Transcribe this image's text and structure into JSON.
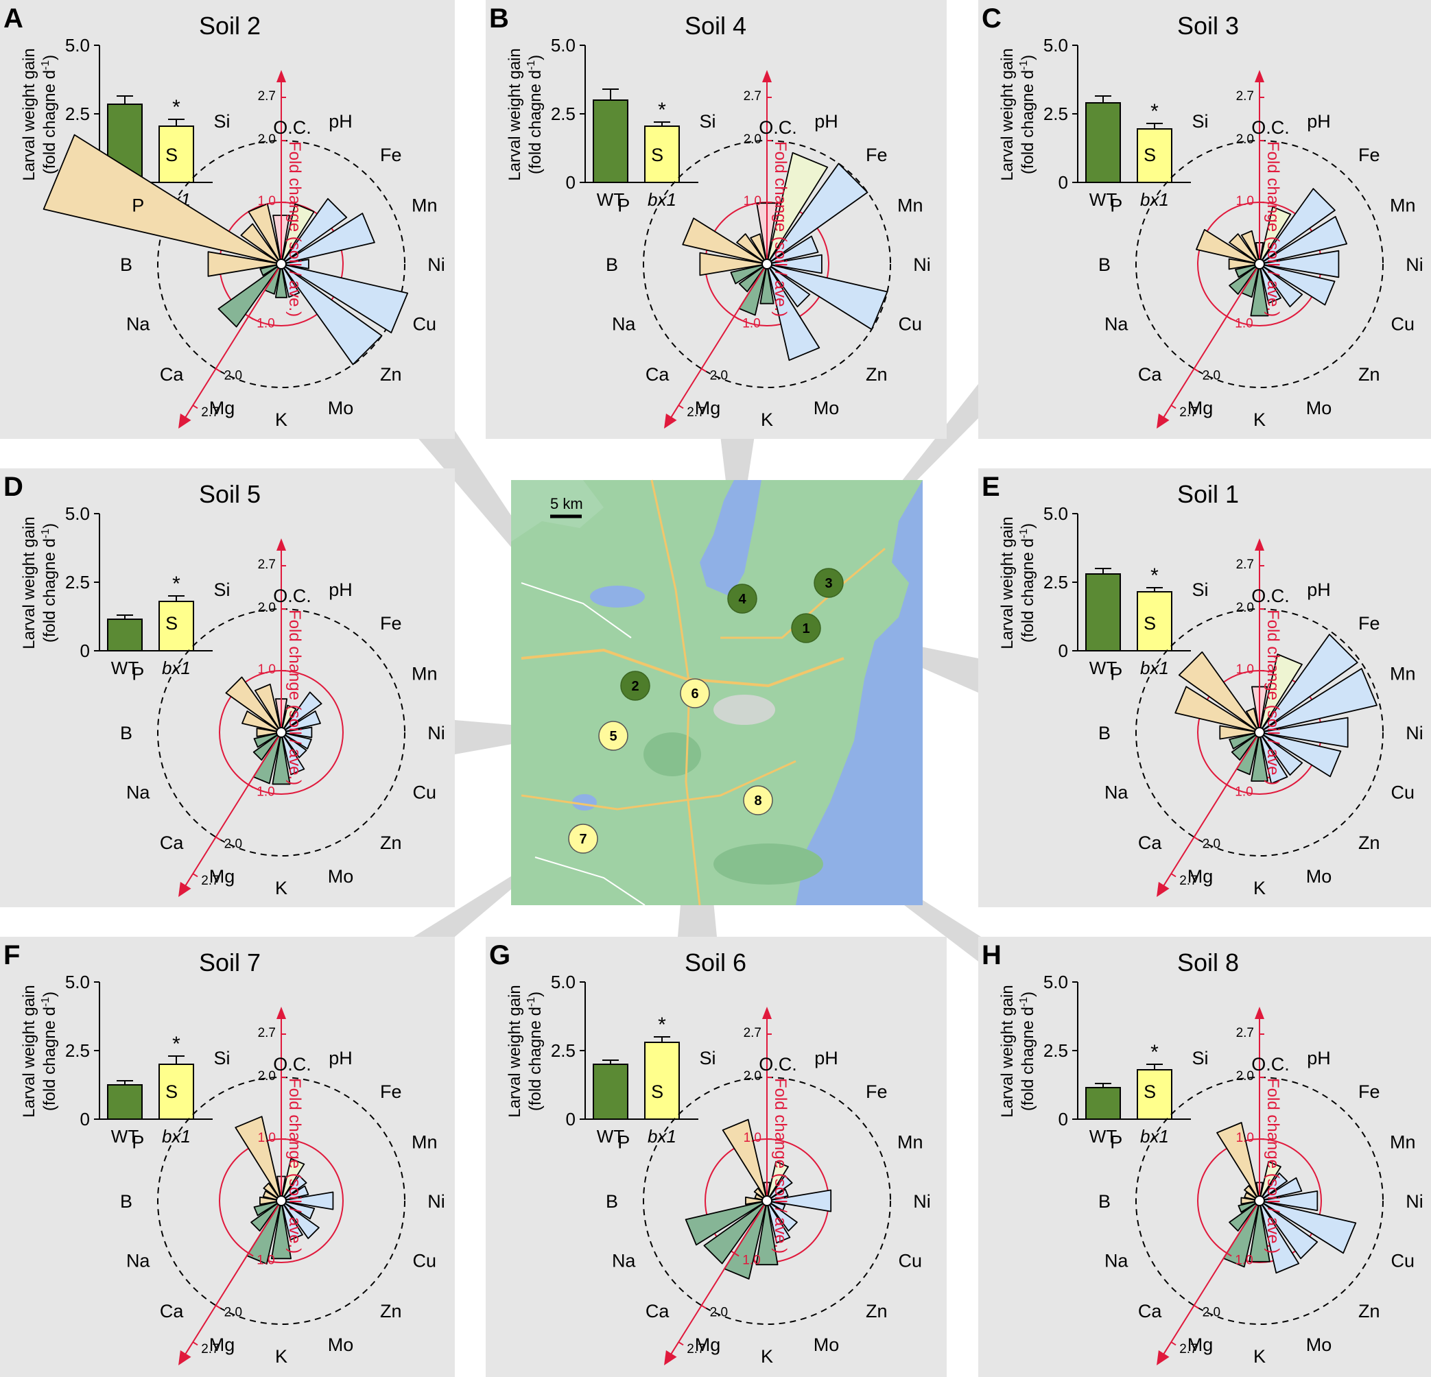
{
  "figure": {
    "colors": {
      "panel_bg": "#e6e6e6",
      "wt": "#5b8a34",
      "bx1": "#ffff8c",
      "red": "#e0193c",
      "micro": "#cfe3f8",
      "macro": "#86b596",
      "misc": "#f3dcae",
      "ph": "#eef4d2",
      "oc": "#f8d3d8",
      "map_land": "#9fd1a4",
      "map_water": "#8fb0e6",
      "marker_green": "#4e7d2b",
      "marker_yellow": "#fffa9c"
    },
    "labels": {
      "y_axis_line1": "Larval weight gain",
      "y_axis_line2": "(fold chagne d",
      "y_axis_sup": "-1",
      "y_axis_close": ")",
      "tick_5": "5.0",
      "tick_25": "2.5",
      "tick_0": "0",
      "wt": "WT",
      "bx1": "bx1",
      "star": "*",
      "fold_axis": "Fold change (soil / ave.)",
      "r_10": "1.0",
      "r_20": "2.0",
      "r_27": "2.7",
      "map_scale": "5 km"
    },
    "elements": [
      "O.C.",
      "pH",
      "Fe",
      "Mn",
      "Ni",
      "Cu",
      "Zn",
      "Mo",
      "K",
      "Mg",
      "Ca",
      "Na",
      "B",
      "P",
      "S",
      "Si"
    ],
    "map_markers": [
      "1",
      "2",
      "3",
      "4",
      "5",
      "6",
      "7",
      "8"
    ]
  },
  "chart_data": [
    {
      "type": "bar+polar",
      "panel": "A",
      "title": "Soil 2",
      "bar": {
        "categories": [
          "WT",
          "bx1"
        ],
        "values": [
          2.85,
          2.05
        ],
        "errors": [
          0.3,
          0.25
        ],
        "ylim": [
          0,
          5.0
        ],
        "significance": "bx1"
      },
      "rose": {
        "categories": [
          "O.C.",
          "pH",
          "Fe",
          "Mn",
          "Ni",
          "Cu",
          "Zn",
          "Mo",
          "K",
          "Mg",
          "Ca",
          "Na",
          "B",
          "P",
          "S",
          "Si"
        ],
        "values": [
          0.8,
          1.0,
          1.3,
          1.55,
          0.45,
          2.1,
          2.0,
          0.55,
          0.55,
          0.5,
          1.25,
          0.35,
          1.2,
          3.95,
          0.8,
          1.0
        ]
      }
    },
    {
      "type": "bar+polar",
      "panel": "B",
      "title": "Soil 4",
      "bar": {
        "categories": [
          "WT",
          "bx1"
        ],
        "values": [
          3.0,
          2.05
        ],
        "errors": [
          0.4,
          0.15
        ],
        "ylim": [
          0,
          5.0
        ],
        "significance": "bx1"
      },
      "rose": {
        "categories": [
          "O.C.",
          "pH",
          "Fe",
          "Mn",
          "Ni",
          "Cu",
          "Zn",
          "Mo",
          "K",
          "Mg",
          "Ca",
          "Na",
          "B",
          "P",
          "S",
          "Si"
        ],
        "values": [
          1.0,
          1.85,
          2.0,
          0.85,
          0.9,
          2.0,
          0.85,
          1.6,
          0.65,
          0.85,
          0.55,
          0.6,
          1.1,
          1.4,
          0.6,
          0.5
        ]
      }
    },
    {
      "type": "bar+polar",
      "panel": "C",
      "title": "Soil 3",
      "bar": {
        "categories": [
          "WT",
          "bx1"
        ],
        "values": [
          2.9,
          1.95
        ],
        "errors": [
          0.25,
          0.2
        ],
        "ylim": [
          0,
          5.0
        ],
        "significance": "bx1"
      },
      "rose": {
        "categories": [
          "O.C.",
          "pH",
          "Fe",
          "Mn",
          "Ni",
          "Cu",
          "Zn",
          "Mo",
          "K",
          "Mg",
          "Ca",
          "Na",
          "B",
          "P",
          "S",
          "Si"
        ],
        "values": [
          0.35,
          0.95,
          1.5,
          1.45,
          1.3,
          1.25,
          0.85,
          0.65,
          0.85,
          0.55,
          0.6,
          0.4,
          0.5,
          1.05,
          0.6,
          0.55
        ]
      }
    },
    {
      "type": "bar+polar",
      "panel": "D",
      "title": "Soil 5",
      "bar": {
        "categories": [
          "WT",
          "bx1"
        ],
        "values": [
          1.15,
          1.8
        ],
        "errors": [
          0.15,
          0.2
        ],
        "ylim": [
          0,
          5.0
        ],
        "significance": "bx1"
      },
      "rose": {
        "categories": [
          "O.C.",
          "pH",
          "Fe",
          "Mn",
          "Ni",
          "Cu",
          "Zn",
          "Mo",
          "K",
          "Mg",
          "Ca",
          "Na",
          "B",
          "P",
          "S",
          "Si"
        ],
        "values": [
          0.55,
          0.45,
          0.8,
          0.65,
          0.5,
          0.5,
          0.5,
          0.7,
          0.85,
          0.85,
          0.55,
          0.45,
          0.4,
          0.65,
          1.1,
          0.8
        ]
      }
    },
    {
      "type": "bar+polar",
      "panel": "E",
      "title": "Soil 1",
      "bar": {
        "categories": [
          "WT",
          "bx1"
        ],
        "values": [
          2.8,
          2.15
        ],
        "errors": [
          0.2,
          0.15
        ],
        "ylim": [
          0,
          5.0
        ],
        "significance": "bx1"
      },
      "rose": {
        "categories": [
          "O.C.",
          "pH",
          "Fe",
          "Mn",
          "Ni",
          "Cu",
          "Zn",
          "Mo",
          "K",
          "Mg",
          "Ca",
          "Na",
          "B",
          "P",
          "S",
          "Si"
        ],
        "values": [
          0.75,
          1.3,
          1.95,
          1.95,
          1.45,
          1.35,
          0.85,
          0.85,
          0.8,
          0.7,
          0.55,
          0.5,
          0.65,
          1.4,
          1.6,
          0.4
        ]
      }
    },
    {
      "type": "bar+polar",
      "panel": "F",
      "title": "Soil 7",
      "bar": {
        "categories": [
          "WT",
          "bx1"
        ],
        "values": [
          1.25,
          2.0
        ],
        "errors": [
          0.15,
          0.3
        ],
        "ylim": [
          0,
          5.0
        ],
        "significance": "bx1"
      },
      "rose": {
        "categories": [
          "O.C.",
          "pH",
          "Fe",
          "Mn",
          "Ni",
          "Cu",
          "Zn",
          "Mo",
          "K",
          "Mg",
          "Ca",
          "Na",
          "B",
          "P",
          "S",
          "Si"
        ],
        "values": [
          0.4,
          0.7,
          0.5,
          0.45,
          0.85,
          0.55,
          0.75,
          0.65,
          0.95,
          1.05,
          0.6,
          0.45,
          0.35,
          0.3,
          0.35,
          1.4
        ]
      }
    },
    {
      "type": "bar+polar",
      "panel": "G",
      "title": "Soil 6",
      "bar": {
        "categories": [
          "WT",
          "bx1"
        ],
        "values": [
          2.0,
          2.8
        ],
        "errors": [
          0.15,
          0.2
        ],
        "ylim": [
          0,
          5.0
        ],
        "significance": "bx1"
      },
      "rose": {
        "categories": [
          "O.C.",
          "pH",
          "Fe",
          "Mn",
          "Ni",
          "Cu",
          "Zn",
          "Mo",
          "K",
          "Mg",
          "Ca",
          "Na",
          "B",
          "P",
          "S",
          "Si"
        ],
        "values": [
          0.3,
          0.65,
          0.5,
          0.35,
          1.05,
          0.3,
          0.6,
          0.7,
          1.05,
          1.3,
          1.25,
          1.35,
          0.35,
          0.2,
          0.25,
          1.35
        ]
      }
    },
    {
      "type": "bar+polar",
      "panel": "H",
      "title": "Soil 8",
      "bar": {
        "categories": [
          "WT",
          "bx1"
        ],
        "values": [
          1.15,
          1.8
        ],
        "errors": [
          0.15,
          0.2
        ],
        "ylim": [
          0,
          5.0
        ],
        "significance": "bx1"
      },
      "rose": {
        "categories": [
          "O.C.",
          "pH",
          "Fe",
          "Mn",
          "Ni",
          "Cu",
          "Zn",
          "Mo",
          "K",
          "Mg",
          "Ca",
          "Na",
          "B",
          "P",
          "S",
          "Si"
        ],
        "values": [
          0.3,
          0.65,
          0.55,
          0.7,
          0.95,
          1.6,
          1.15,
          1.2,
          1.0,
          1.1,
          0.6,
          0.35,
          0.3,
          0.25,
          0.3,
          1.3
        ]
      }
    }
  ]
}
